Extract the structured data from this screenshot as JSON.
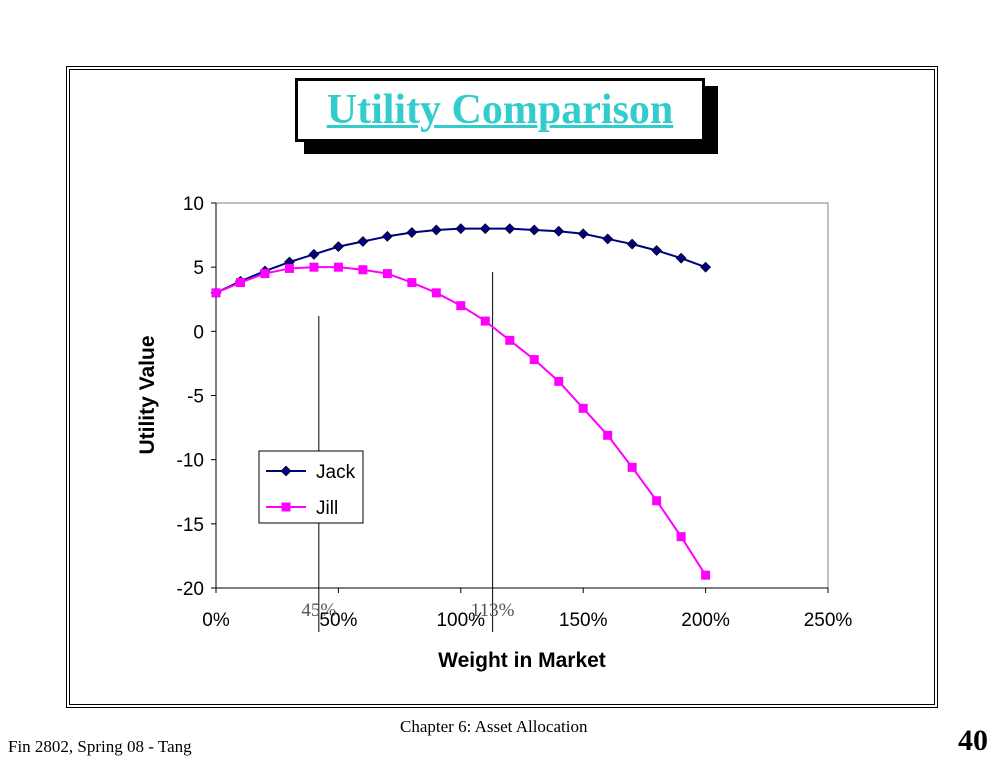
{
  "slide": {
    "title": "Utility Comparison",
    "footer_left": "Fin 2802, Spring 08 - Tang",
    "footer_center": "Chapter 6: Asset Allocation",
    "page_number": "40"
  },
  "chart_data": {
    "type": "line",
    "title": "",
    "xlabel": "Weight in Market",
    "ylabel": "Utility Value",
    "xlim": [
      0,
      2.5
    ],
    "ylim": [
      -20,
      10
    ],
    "x_ticks": [
      0,
      0.5,
      1,
      1.5,
      2,
      2.5
    ],
    "x_tick_labels": [
      "0%",
      "50%",
      "100%",
      "150%",
      "200%",
      "250%"
    ],
    "y_ticks": [
      10,
      5,
      0,
      -5,
      -10,
      -15,
      -20
    ],
    "y_tick_labels": [
      "10",
      "5",
      "0",
      "-5",
      "-10",
      "-15",
      "-20"
    ],
    "legend_position": "left-bottom",
    "grid": false,
    "x": [
      0,
      0.1,
      0.2,
      0.3,
      0.4,
      0.5,
      0.6,
      0.7,
      0.8,
      0.9,
      1.0,
      1.1,
      1.2,
      1.3,
      1.4,
      1.5,
      1.6,
      1.7,
      1.8,
      1.9,
      2.0
    ],
    "series": [
      {
        "name": "Jack",
        "color": "#000080",
        "marker": "diamond",
        "values": [
          3.0,
          3.9,
          4.7,
          5.4,
          6.0,
          6.6,
          7.0,
          7.4,
          7.7,
          7.9,
          8.0,
          8.0,
          8.0,
          7.9,
          7.8,
          7.6,
          7.2,
          6.8,
          6.3,
          5.7,
          5.0
        ]
      },
      {
        "name": "Jill",
        "color": "#ff00ff",
        "marker": "square",
        "values": [
          3.0,
          3.8,
          4.5,
          4.9,
          5.0,
          5.0,
          4.8,
          4.5,
          3.8,
          3.0,
          2.0,
          0.8,
          -0.7,
          -2.2,
          -3.9,
          -6.0,
          -8.1,
          -10.6,
          -13.2,
          -16.0,
          -19.0
        ]
      }
    ],
    "annotations": [
      {
        "label": "45%",
        "x": 0.42
      },
      {
        "label": "113%",
        "x": 1.13
      }
    ]
  }
}
